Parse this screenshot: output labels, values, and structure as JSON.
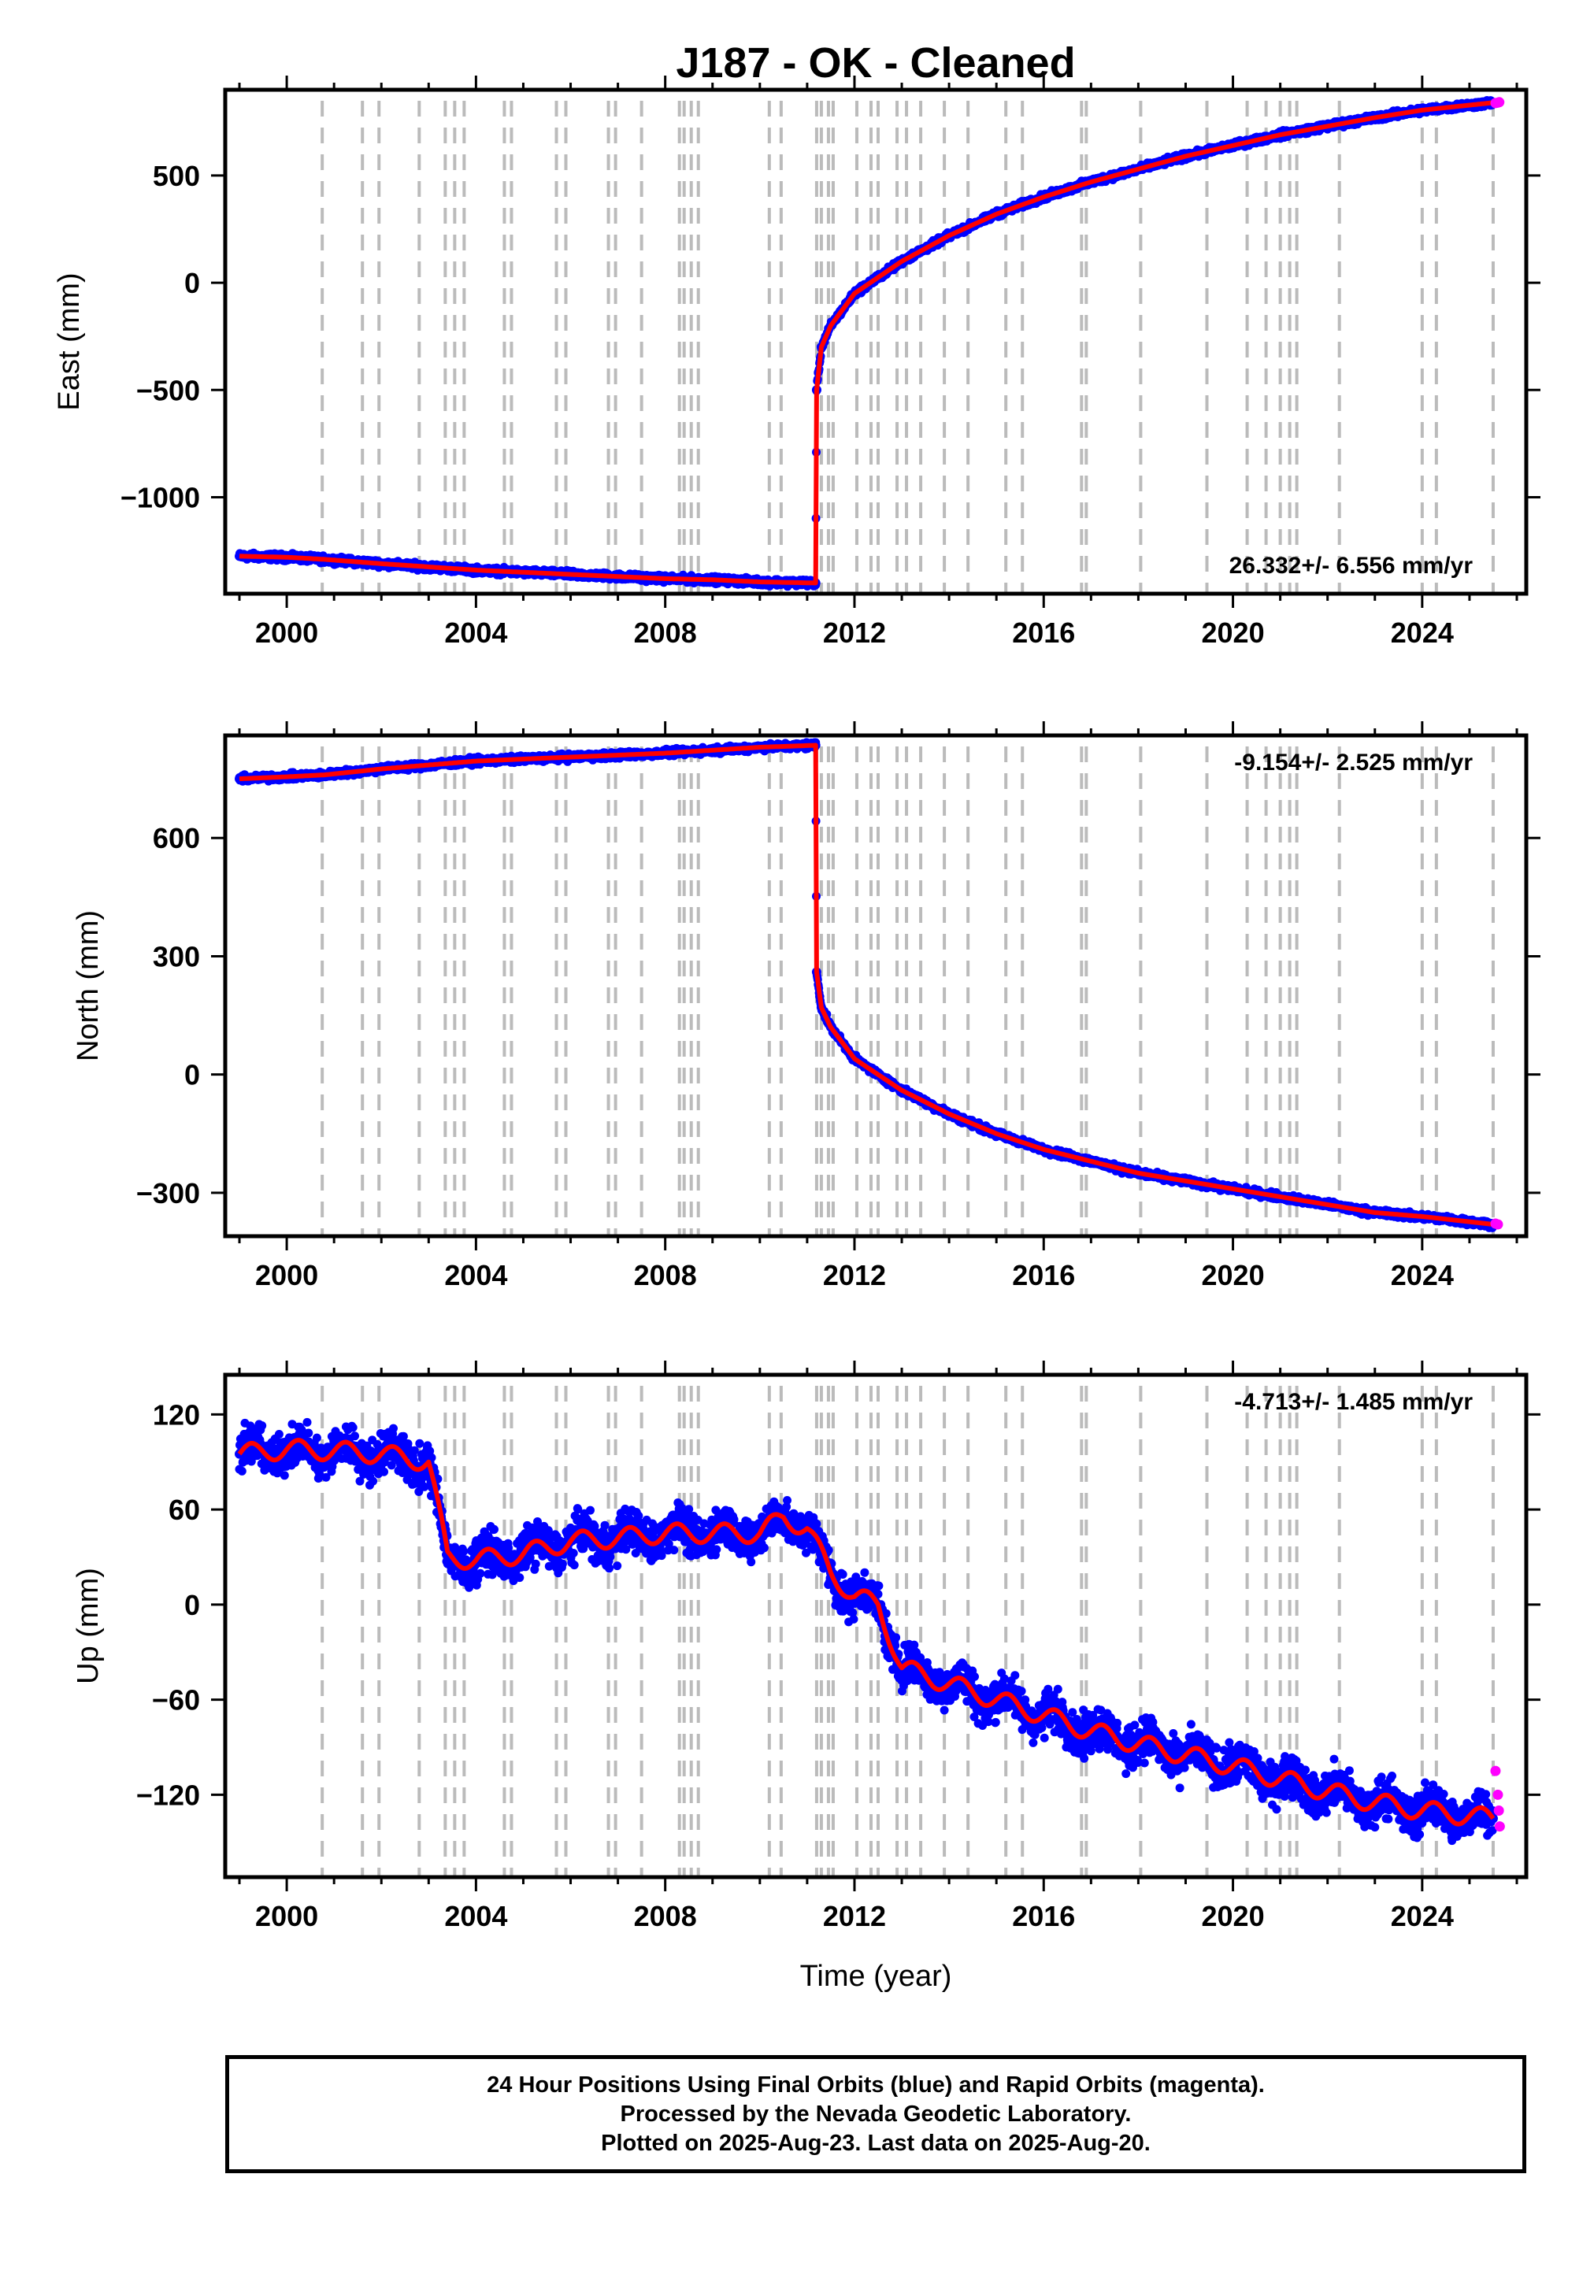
{
  "figure": {
    "title": "J187  - OK - Cleaned"
  },
  "colors": {
    "final_orbits": "#0000ff",
    "rapid_orbits": "#ff00ff",
    "model": "#ff0000",
    "event_lines": "#bbbbbb",
    "frame": "#000000"
  },
  "footer": {
    "line1": "24 Hour Positions Using Final Orbits (blue) and Rapid Orbits (magenta).",
    "line2": "Processed by the Nevada Geodetic Laboratory.",
    "line3": "Plotted on 2025-Aug-23. Last data on 2025-Aug-20."
  },
  "chart_data": [
    {
      "type": "scatter",
      "panel": "east",
      "ylabel": "East (mm)",
      "xlabel": "",
      "xlim": [
        1998.7,
        2026.2
      ],
      "ylim": [
        -1450,
        900
      ],
      "yticks": [
        -1000,
        -500,
        0,
        500
      ],
      "xticks": [
        2000,
        2004,
        2008,
        2012,
        2016,
        2020,
        2024
      ],
      "rate_label": "26.332+/- 6.556 mm/yr",
      "rate_position": "bottom-right",
      "grid": false,
      "series": [
        {
          "name": "Final Orbits",
          "color": "#0000ff",
          "x": [
            1999.0,
            2000.0,
            2000.8,
            2002.0,
            2004.0,
            2006.0,
            2008.0,
            2009.0,
            2010.0,
            2011.18,
            2011.2,
            2011.3,
            2011.5,
            2012.0,
            2013.0,
            2014.0,
            2015.0,
            2016.0,
            2017.0,
            2018.0,
            2019.0,
            2020.0,
            2021.0,
            2022.0,
            2023.0,
            2024.0,
            2025.5
          ],
          "y": [
            -1275,
            -1280,
            -1290,
            -1310,
            -1340,
            -1360,
            -1380,
            -1385,
            -1395,
            -1400,
            -500,
            -300,
            -200,
            -50,
            100,
            220,
            320,
            400,
            470,
            530,
            590,
            640,
            690,
            730,
            770,
            805,
            840
          ]
        },
        {
          "name": "Rapid Orbits",
          "color": "#ff00ff",
          "x": [
            2025.55,
            2025.6,
            2025.63
          ],
          "y": [
            838,
            840,
            842
          ]
        }
      ]
    },
    {
      "type": "scatter",
      "panel": "north",
      "ylabel": "North (mm)",
      "xlabel": "",
      "xlim": [
        1998.7,
        2026.2
      ],
      "ylim": [
        -410,
        860
      ],
      "yticks": [
        -300,
        0,
        300,
        600
      ],
      "xticks": [
        2000,
        2004,
        2008,
        2012,
        2016,
        2020,
        2024
      ],
      "rate_label": "-9.154+/- 2.525 mm/yr",
      "rate_position": "top-right",
      "grid": false,
      "series": [
        {
          "name": "Final Orbits",
          "color": "#0000ff",
          "x": [
            1999.0,
            2000.0,
            2000.8,
            2002.0,
            2004.0,
            2006.0,
            2008.0,
            2010.0,
            2011.18,
            2011.2,
            2011.3,
            2011.5,
            2012.0,
            2013.0,
            2014.0,
            2015.0,
            2016.0,
            2017.0,
            2018.0,
            2019.0,
            2020.0,
            2021.0,
            2022.0,
            2023.0,
            2024.0,
            2025.5
          ],
          "y": [
            750,
            755,
            760,
            775,
            795,
            805,
            815,
            830,
            835,
            260,
            170,
            120,
            40,
            -40,
            -100,
            -150,
            -190,
            -220,
            -250,
            -270,
            -290,
            -310,
            -330,
            -350,
            -360,
            -380
          ]
        },
        {
          "name": "Rapid Orbits",
          "color": "#ff00ff",
          "x": [
            2025.55,
            2025.6
          ],
          "y": [
            -378,
            -380
          ]
        }
      ]
    },
    {
      "type": "scatter",
      "panel": "up",
      "ylabel": "Up (mm)",
      "xlabel": "Time (year)",
      "xlim": [
        1998.7,
        2026.2
      ],
      "ylim": [
        -172,
        145
      ],
      "yticks": [
        -120,
        -60,
        0,
        60,
        120
      ],
      "xticks": [
        2000,
        2004,
        2008,
        2012,
        2016,
        2020,
        2024
      ],
      "rate_label": "-4.713+/- 1.485 mm/yr",
      "rate_position": "top-right",
      "grid": false,
      "series": [
        {
          "name": "Final Orbits",
          "color": "#0000ff",
          "x": [
            1999.0,
            2000.0,
            2001.0,
            2002.0,
            2003.0,
            2003.4,
            2004.0,
            2005.0,
            2006.0,
            2007.0,
            2008.0,
            2009.0,
            2010.0,
            2010.5,
            2011.0,
            2011.5,
            2012.0,
            2012.5,
            2013.0,
            2014.0,
            2015.0,
            2016.0,
            2017.0,
            2018.0,
            2019.0,
            2020.0,
            2021.0,
            2022.0,
            2023.0,
            2024.0,
            2025.5
          ],
          "y": [
            95,
            98,
            97,
            95,
            90,
            30,
            28,
            32,
            40,
            42,
            45,
            45,
            45,
            55,
            48,
            20,
            5,
            0,
            -40,
            -50,
            -60,
            -70,
            -80,
            -88,
            -95,
            -102,
            -110,
            -118,
            -125,
            -130,
            -135
          ]
        },
        {
          "name": "Rapid Orbits",
          "color": "#ff00ff",
          "x": [
            2025.55,
            2025.6,
            2025.62,
            2025.64
          ],
          "y": [
            -105,
            -120,
            -130,
            -140
          ]
        }
      ]
    }
  ]
}
